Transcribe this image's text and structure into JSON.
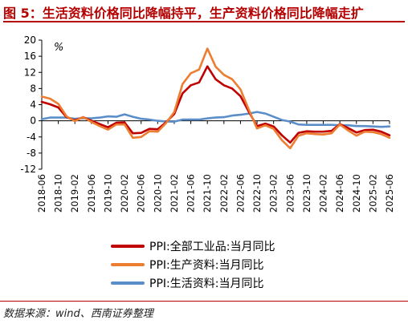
{
  "header": {
    "title": "图 5：生活资料价格同比降幅持平，生产资料价格同比降幅走扩"
  },
  "source": "数据来源：wind、西南证券整理",
  "colors": {
    "title": "#b40000",
    "ppi_all": "#c00000",
    "ppi_production": "#ed7d31",
    "ppi_living": "#5b8ec9"
  },
  "chart_data": {
    "type": "line",
    "title": "",
    "xlabel": "",
    "ylabel": "%",
    "ylim": [
      -12,
      20
    ],
    "yticks": [
      -12,
      -8,
      -4,
      0,
      4,
      8,
      12,
      16,
      20
    ],
    "grid": false,
    "legend_position": "bottom",
    "x": [
      "2018-06",
      "2018-08",
      "2018-10",
      "2018-12",
      "2019-02",
      "2019-04",
      "2019-06",
      "2019-08",
      "2019-10",
      "2019-12",
      "2020-02",
      "2020-04",
      "2020-06",
      "2020-08",
      "2020-10",
      "2020-12",
      "2021-02",
      "2021-04",
      "2021-06",
      "2021-08",
      "2021-10",
      "2021-12",
      "2022-02",
      "2022-04",
      "2022-06",
      "2022-08",
      "2022-10",
      "2022-12",
      "2023-02",
      "2023-04",
      "2023-06",
      "2023-08",
      "2023-10",
      "2023-12",
      "2024-02",
      "2024-04",
      "2024-06",
      "2024-08",
      "2024-10",
      "2024-12",
      "2025-02",
      "2025-04",
      "2025-06"
    ],
    "xtick_labels": [
      "2018-06",
      "2018-10",
      "2019-02",
      "2019-06",
      "2019-10",
      "2020-02",
      "2020-06",
      "2020-10",
      "2021-02",
      "2021-06",
      "2021-10",
      "2022-02",
      "2022-06",
      "2022-10",
      "2023-02",
      "2023-06",
      "2023-10",
      "2024-02",
      "2024-06",
      "2024-10",
      "2025-02",
      "2025-06"
    ],
    "series": [
      {
        "name": "PPI:全部工业品:当月同比",
        "color": "#c00000",
        "values": [
          4.7,
          4.1,
          3.3,
          0.9,
          0.1,
          0.9,
          0.0,
          -0.8,
          -1.6,
          -0.5,
          -0.4,
          -3.1,
          -3.0,
          -2.0,
          -2.1,
          -0.4,
          1.7,
          6.8,
          8.8,
          9.5,
          13.5,
          10.3,
          8.8,
          8.0,
          6.1,
          2.3,
          -1.3,
          -0.7,
          -1.4,
          -3.6,
          -5.4,
          -3.0,
          -2.6,
          -2.7,
          -2.7,
          -2.5,
          -0.8,
          -1.8,
          -2.9,
          -2.3,
          -2.2,
          -2.7,
          -3.6
        ]
      },
      {
        "name": "PPI:生产资料:当月同比",
        "color": "#ed7d31",
        "values": [
          6.0,
          5.5,
          4.2,
          1.1,
          -0.1,
          0.9,
          -0.3,
          -1.3,
          -2.2,
          -0.9,
          -0.9,
          -4.2,
          -4.0,
          -2.6,
          -2.7,
          -0.6,
          2.2,
          9.1,
          11.8,
          12.7,
          17.9,
          13.4,
          11.4,
          10.3,
          7.8,
          2.8,
          -1.9,
          -1.1,
          -2.0,
          -4.8,
          -6.8,
          -3.7,
          -3.1,
          -3.3,
          -3.4,
          -3.1,
          -0.9,
          -2.4,
          -3.7,
          -2.7,
          -2.8,
          -3.3,
          -4.2
        ]
      },
      {
        "name": "PPI:生活资料:当月同比",
        "color": "#5b8ec9",
        "values": [
          0.4,
          0.8,
          0.8,
          0.8,
          0.5,
          0.6,
          0.6,
          0.8,
          1.1,
          1.0,
          1.6,
          1.0,
          0.5,
          0.3,
          0.0,
          -0.2,
          -0.2,
          0.3,
          0.3,
          0.3,
          0.6,
          0.8,
          0.9,
          1.3,
          1.5,
          1.8,
          2.2,
          1.8,
          1.0,
          0.2,
          -0.2,
          -0.9,
          -1.0,
          -1.0,
          -1.0,
          -1.0,
          -1.1,
          -1.1,
          -1.3,
          -1.3,
          -1.4,
          -1.5,
          -1.4
        ]
      }
    ]
  }
}
